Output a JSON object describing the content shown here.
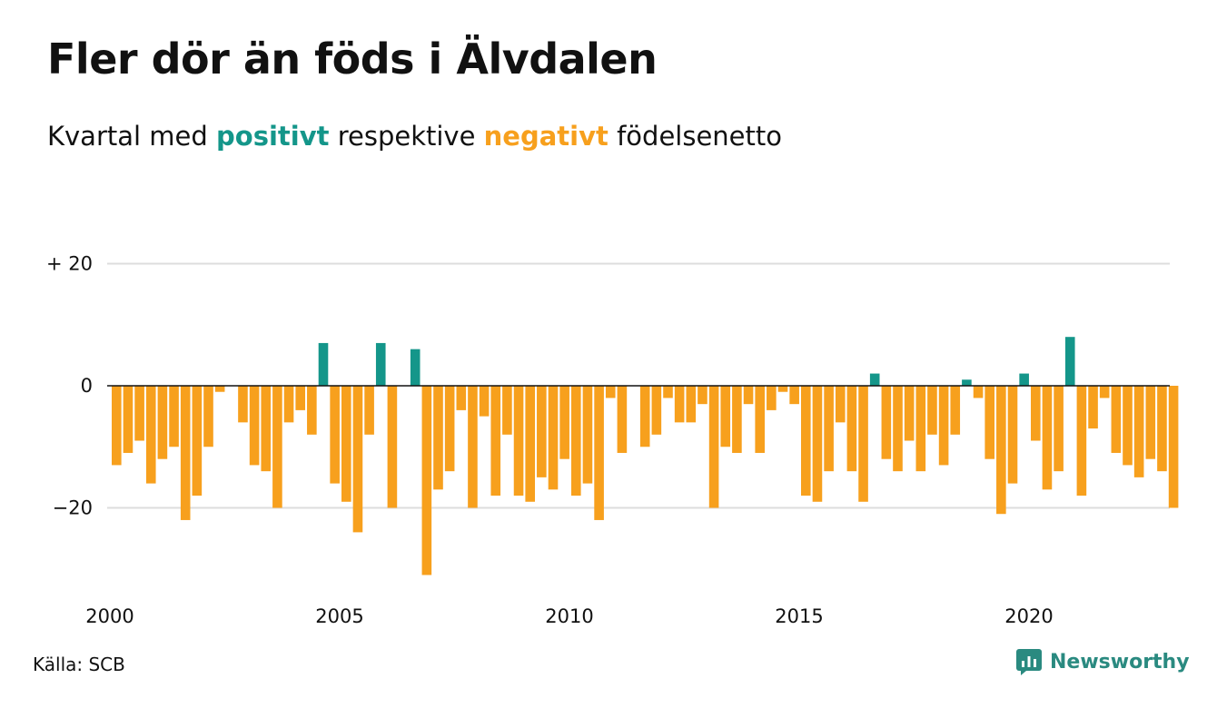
{
  "title": "Fler dör än föds i Älvdalen",
  "subtitle": {
    "pre": "Kvartal med",
    "positive_word": "positivt",
    "mid": "respektive",
    "negative_word": "negativt",
    "post": "födelsenetto"
  },
  "colors": {
    "positive": "#14968a",
    "negative": "#f7a01d",
    "grid": "#dddddd",
    "brand": "#2a8a80"
  },
  "source": "Källa: SCB",
  "brand": {
    "name": "Newsworthy",
    "icon": "newsworthy-logo-icon"
  },
  "chart_data": {
    "type": "bar",
    "x_axis": {
      "ticks": [
        "2000",
        "2005",
        "2010",
        "2015",
        "2020"
      ],
      "start_year": 2000
    },
    "y_axis": {
      "ticks": [
        20,
        0,
        -20
      ],
      "tick_labels": [
        "+ 20",
        "0",
        "−20"
      ],
      "ylim": [
        -33,
        22
      ]
    },
    "grid": true,
    "series": [
      {
        "values": [
          -13,
          -11,
          -9,
          -16,
          -12,
          -10,
          -22,
          -18,
          -10,
          -1,
          0,
          -6,
          -13,
          -14,
          -20,
          -6,
          -4,
          -8,
          7,
          -16,
          -19,
          -24,
          -8,
          7,
          -20,
          0,
          6,
          -31,
          -17,
          -14,
          -4,
          -20,
          -5,
          -18,
          -8,
          -18,
          -19,
          -15,
          -17,
          -12,
          -18,
          -16,
          -22,
          -2,
          -11,
          0,
          -10,
          -8,
          -2,
          -6,
          -6,
          -3,
          -20,
          -10,
          -11,
          -3,
          -11,
          -4,
          -1,
          -3,
          -18,
          -19,
          -14,
          -6,
          -14,
          -19,
          2,
          -12,
          -14,
          -9,
          -14,
          -8,
          -13,
          -8,
          1,
          -2,
          -12,
          -21,
          -16,
          2,
          -9,
          -17,
          -14,
          8,
          -18,
          -7,
          -2,
          -11,
          -13,
          -15,
          -12,
          -14,
          -20
        ]
      }
    ]
  }
}
